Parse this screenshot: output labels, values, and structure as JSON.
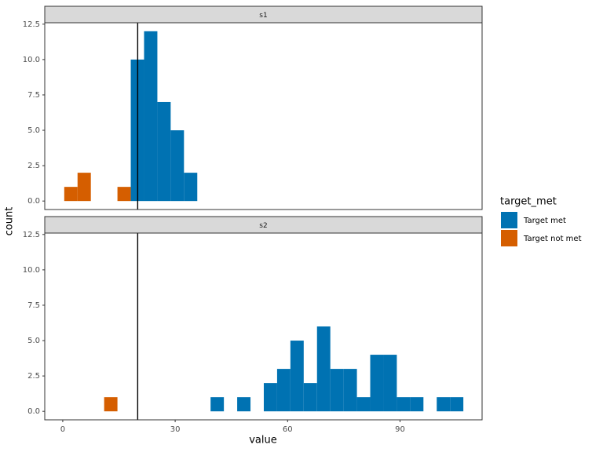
{
  "chart_data": {
    "type": "histogram",
    "xlabel": "value",
    "ylabel": "count",
    "legend_title": "target_met",
    "bins": [
      0.4,
      3.95,
      7.5,
      11.05,
      14.6,
      18.15,
      21.7,
      25.25,
      28.8,
      32.35,
      35.9,
      39.45,
      43.0,
      46.55,
      50.1,
      53.65,
      57.2,
      60.75,
      64.3,
      67.85,
      71.4,
      74.95,
      78.5,
      82.05,
      85.6,
      89.15,
      92.7,
      96.25,
      99.8,
      103.35,
      106.9
    ],
    "xlim": [
      -4.8,
      111.9
    ],
    "xticks": [
      0,
      30,
      60,
      90
    ],
    "ylim": [
      -0.6,
      12.6
    ],
    "yticks": [
      {
        "value": 0,
        "label": "0.0"
      },
      2.5,
      {
        "value": 5,
        "label": "5.0"
      },
      7.5,
      {
        "value": 10,
        "label": "10.0"
      },
      12.5
    ],
    "xintercept": 20,
    "facets": [
      {
        "name": "s1",
        "series": [
          {
            "name": "Target met",
            "color": "#0072B2",
            "values": [
              0,
              0,
              0,
              0,
              0,
              10,
              12,
              7,
              5,
              2,
              0,
              0,
              0,
              0,
              0,
              0,
              0,
              0,
              0,
              0,
              0,
              0,
              0,
              0,
              0,
              0,
              0,
              0,
              0,
              0
            ]
          },
          {
            "name": "Target not met",
            "color": "#D55E00",
            "values": [
              1,
              2,
              0,
              0,
              1,
              0,
              0,
              0,
              0,
              0,
              0,
              0,
              0,
              0,
              0,
              0,
              0,
              0,
              0,
              0,
              0,
              0,
              0,
              0,
              0,
              0,
              0,
              0,
              0,
              0
            ]
          }
        ]
      },
      {
        "name": "s2",
        "series": [
          {
            "name": "Target met",
            "color": "#0072B2",
            "values": [
              0,
              0,
              0,
              0,
              0,
              0,
              0,
              0,
              0,
              0,
              0,
              1,
              0,
              1,
              0,
              2,
              3,
              5,
              2,
              6,
              3,
              3,
              1,
              4,
              4,
              1,
              1,
              0,
              1,
              1
            ]
          },
          {
            "name": "Target not met",
            "color": "#D55E00",
            "values": [
              0,
              0,
              0,
              1,
              0,
              0,
              0,
              0,
              0,
              0,
              0,
              0,
              0,
              0,
              0,
              0,
              0,
              0,
              0,
              0,
              0,
              0,
              0,
              0,
              0,
              0,
              0,
              0,
              0,
              0
            ]
          }
        ]
      }
    ]
  }
}
